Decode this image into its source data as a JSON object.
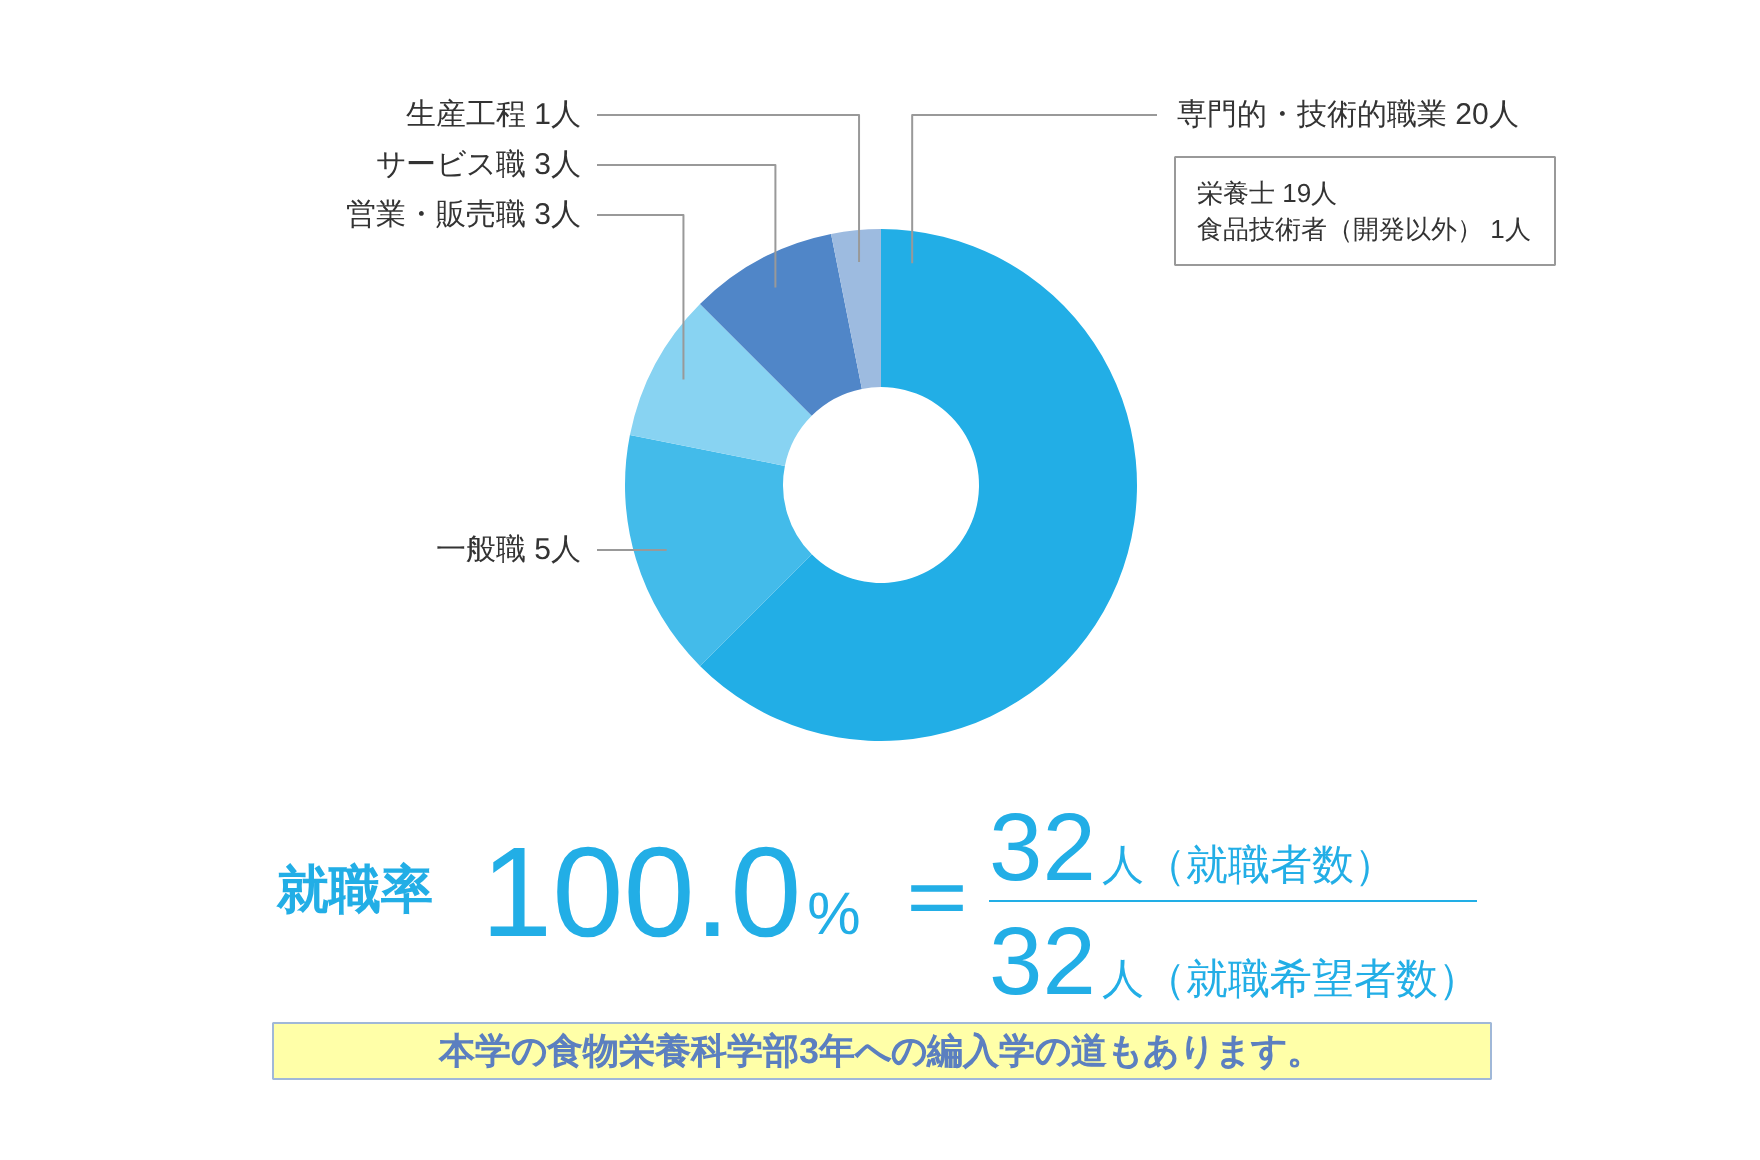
{
  "chart_data": {
    "type": "donut",
    "categories": [
      "専門的・技術的職業",
      "一般職",
      "営業・販売職",
      "サービス職",
      "生産工程"
    ],
    "values": [
      20,
      5,
      3,
      3,
      1
    ],
    "colors": [
      "#22aee6",
      "#43bbea",
      "#88d3f2",
      "#5086c8",
      "#9dbbe0"
    ],
    "value_labels": [
      "20人",
      "5人",
      "3人",
      "3人",
      "1人"
    ],
    "annotations": [
      "栄養士 19人",
      "食品技術者（開発以外） 1人",
      "就職率",
      "100.0%",
      "＝",
      "32人（就職者数）",
      "32人（就職希望者数）",
      "本学の食物栄養科学部3年への編入学の道もあります。"
    ]
  }
}
